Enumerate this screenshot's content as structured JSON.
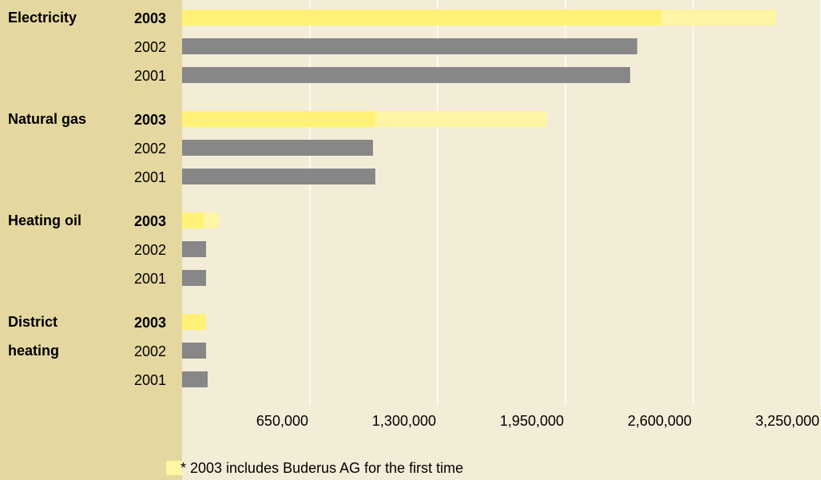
{
  "chart_data": {
    "type": "bar",
    "orientation": "horizontal",
    "categories": [
      "Electricity",
      "Natural gas",
      "Heating oil",
      "District heating"
    ],
    "series": [
      {
        "name": "2003",
        "color": "#fff176",
        "bold": true,
        "values": [
          2437500,
          983000,
          110000,
          122000
        ]
      },
      {
        "name": "2002",
        "color": "#878787",
        "bold": false,
        "values": [
          2315000,
          971000,
          122000,
          122000
        ]
      },
      {
        "name": "2001",
        "color": "#878787",
        "bold": false,
        "values": [
          2279000,
          983000,
          122000,
          130000
        ]
      }
    ],
    "additions": {
      "label": "* 2003 includes Buderus AG for the first time",
      "color": "#fff5a3",
      "series": 0,
      "values": [
        585000,
        873000,
        77000,
        null
      ]
    },
    "xlim": [
      0,
      3250000
    ],
    "xticks": [
      {
        "value": 650000,
        "label": "650,000"
      },
      {
        "value": 1300000,
        "label": "1,300,000"
      },
      {
        "value": 1950000,
        "label": "1,950,000"
      },
      {
        "value": 2600000,
        "label": "2,600,000"
      },
      {
        "value": 3250000,
        "label": "3,250,000"
      }
    ],
    "grid": true
  }
}
